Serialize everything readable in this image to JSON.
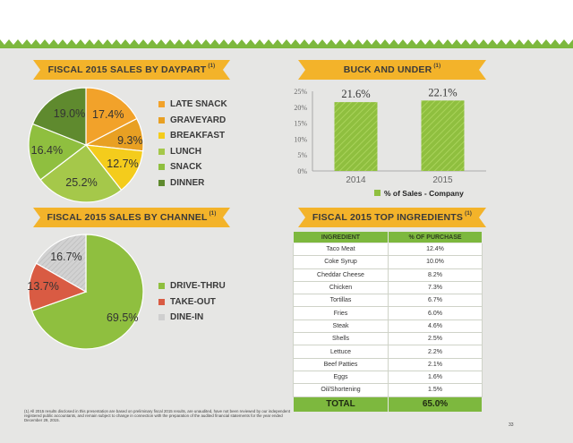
{
  "colors": {
    "green_dark": "#5f8a2e",
    "green": "#7db83e",
    "green_light": "#a5c84a",
    "yellow": "#f4cc1c",
    "orange": "#f2a22a",
    "gold": "#e8a023",
    "red": "#d95b43",
    "gray": "#cfcfcf",
    "banner": "#f3b32a"
  },
  "banners": {
    "daypart": "FISCAL 2015 SALES BY DAYPART",
    "daypart_sup": "(1)",
    "buck": "BUCK AND UNDER",
    "buck_sup": "(1)",
    "channel": "FISCAL 2015 SALES BY CHANNEL",
    "channel_sup": "(1)",
    "ingredients": "FISCAL 2015 TOP INGREDIENTS",
    "ingredients_sup": "(1)"
  },
  "chart_data": [
    {
      "type": "pie",
      "title": "FISCAL 2015 SALES BY DAYPART",
      "legend_position": "right",
      "slices": [
        {
          "name": "LATE SNACK",
          "value": 17.4,
          "label": "17.4%",
          "color": "#f2a22a"
        },
        {
          "name": "GRAVEYARD",
          "value": 9.3,
          "label": "9.3%",
          "color": "#e8a023"
        },
        {
          "name": "BREAKFAST",
          "value": 12.7,
          "label": "12.7%",
          "color": "#f4cc1c"
        },
        {
          "name": "LUNCH",
          "value": 25.2,
          "label": "25.2%",
          "color": "#a5c84a"
        },
        {
          "name": "SNACK",
          "value": 16.4,
          "label": "16.4%",
          "color": "#8fbf3f"
        },
        {
          "name": "DINNER",
          "value": 19.0,
          "label": "19.0%",
          "color": "#5f8a2e"
        }
      ]
    },
    {
      "type": "bar",
      "title": "BUCK AND UNDER",
      "categories": [
        "2014",
        "2015"
      ],
      "series": [
        {
          "name": "% of Sales - Company",
          "values": [
            21.6,
            22.1
          ]
        }
      ],
      "data_labels": [
        "21.6%",
        "22.1%"
      ],
      "ylim": [
        0,
        25
      ],
      "yticks": [
        "0%",
        "5%",
        "10%",
        "15%",
        "20%",
        "25%"
      ],
      "ytick_values": [
        0,
        5,
        10,
        15,
        20,
        25
      ],
      "legend_position": "bottom"
    },
    {
      "type": "pie",
      "title": "FISCAL 2015 SALES BY CHANNEL",
      "legend_position": "right",
      "slices": [
        {
          "name": "DRIVE-THRU",
          "value": 69.5,
          "label": "69.5%",
          "color": "#8fbf3f"
        },
        {
          "name": "TAKE-OUT",
          "value": 13.7,
          "label": "13.7%",
          "color": "#d95b43"
        },
        {
          "name": "DINE-IN",
          "value": 16.7,
          "label": "16.7%",
          "color": "#cfcfcf"
        }
      ]
    },
    {
      "type": "table",
      "title": "FISCAL 2015 TOP INGREDIENTS",
      "headers": [
        "INGREDIENT",
        "% OF PURCHASE"
      ],
      "rows": [
        [
          "Taco Meat",
          "12.4%"
        ],
        [
          "Coke Syrup",
          "10.0%"
        ],
        [
          "Cheddar Cheese",
          "8.2%"
        ],
        [
          "Chicken",
          "7.3%"
        ],
        [
          "Tortillas",
          "6.7%"
        ],
        [
          "Fries",
          "6.0%"
        ],
        [
          "Steak",
          "4.6%"
        ],
        [
          "Shells",
          "2.5%"
        ],
        [
          "Lettuce",
          "2.2%"
        ],
        [
          "Beef Patties",
          "2.1%"
        ],
        [
          "Eggs",
          "1.6%"
        ],
        [
          "Oil/Shortening",
          "1.5%"
        ]
      ],
      "total": [
        "TOTAL",
        "65.0%"
      ]
    }
  ],
  "footnote": "(1)   All 2015 results disclosed in this presentation are based on preliminary fiscal 2015 results, are unaudited, have not been reviewed by our independent registered public accountants, and remain subject to change in connection with the preparation of the audited financial statements for the year ended December 29, 2015.",
  "page_number": "33"
}
